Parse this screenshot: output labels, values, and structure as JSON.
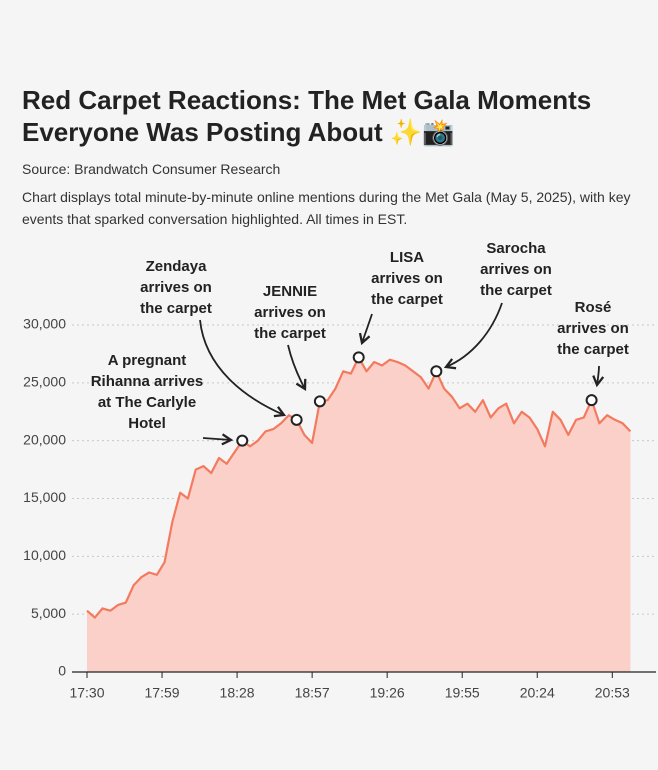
{
  "chart_data": {
    "type": "area",
    "title": "Red Carpet Reactions: The Met Gala Moments Everyone Was Posting About ✨📸",
    "source": "Source: Brandwatch Consumer Research",
    "subtitle": "Chart displays total minute-by-minute online mentions during the Met Gala (May 5, 2025), with key events that sparked conversation highlighted. All times in EST.",
    "x": [
      1050,
      1053,
      1056,
      1059,
      1062,
      1065,
      1068,
      1071,
      1074,
      1077,
      1080,
      1083,
      1086,
      1089,
      1092,
      1095,
      1098,
      1101,
      1104,
      1107,
      1110,
      1113,
      1116,
      1119,
      1122,
      1125,
      1128,
      1131,
      1134,
      1137,
      1140,
      1143,
      1146,
      1149,
      1152,
      1155,
      1158,
      1161,
      1164,
      1167,
      1170,
      1173,
      1176,
      1179,
      1182,
      1185,
      1188,
      1191,
      1194,
      1197,
      1200,
      1203,
      1206,
      1209,
      1212,
      1215,
      1218,
      1221,
      1224,
      1227,
      1230,
      1233,
      1236,
      1239,
      1242,
      1245,
      1248,
      1251,
      1254,
      1257,
      1260
    ],
    "values": [
      5300,
      4700,
      5500,
      5300,
      5800,
      6000,
      7500,
      8200,
      8600,
      8400,
      9500,
      13000,
      15500,
      15000,
      17500,
      17800,
      17200,
      18500,
      18000,
      19000,
      20000,
      19500,
      20000,
      20800,
      21000,
      21500,
      22200,
      21800,
      20500,
      19800,
      23400,
      23500,
      24500,
      26000,
      25800,
      27200,
      26000,
      26800,
      26500,
      27000,
      26800,
      26500,
      26000,
      25500,
      24500,
      26000,
      24500,
      23800,
      22800,
      23200,
      22500,
      23500,
      22000,
      22800,
      23200,
      21500,
      22500,
      22000,
      21000,
      19500,
      22500,
      21800,
      20500,
      21800,
      22000,
      23500,
      21500,
      22200,
      21800,
      21500,
      20800
    ],
    "color": "#f47a5f",
    "fill": "#fbd0c8",
    "xlim": [
      1050,
      1261
    ],
    "xticks": [
      {
        "value": 1050,
        "label": "17:30"
      },
      {
        "value": 1079,
        "label": "17:59"
      },
      {
        "value": 1108,
        "label": "18:28"
      },
      {
        "value": 1137,
        "label": "18:57"
      },
      {
        "value": 1166,
        "label": "19:26"
      },
      {
        "value": 1195,
        "label": "19:55"
      },
      {
        "value": 1224,
        "label": "20:24"
      },
      {
        "value": 1253,
        "label": "20:53"
      }
    ],
    "ylim": [
      0,
      30000
    ],
    "yticks": [
      0,
      {
        "value": 5000,
        "label": "5,000"
      },
      {
        "value": 10000,
        "label": "10,000"
      },
      {
        "value": 15000,
        "label": "15,000"
      },
      {
        "value": 20000,
        "label": "20,000"
      },
      {
        "value": 25000,
        "label": "25,000"
      },
      {
        "value": 30000,
        "label": "30,000"
      }
    ],
    "grid": true,
    "annotations": [
      {
        "lines": [
          "A pregnant",
          "Rihanna arrives",
          "at The Carlyle",
          "Hotel"
        ],
        "x": 1110,
        "y": 20000
      },
      {
        "lines": [
          "Zendaya",
          "arrives on",
          "the carpet"
        ],
        "x": 1131,
        "y": 21800
      },
      {
        "lines": [
          "JENNIE",
          "arrives on",
          "the carpet"
        ],
        "x": 1140,
        "y": 23400
      },
      {
        "lines": [
          "LISA",
          "arrives on",
          "the carpet"
        ],
        "x": 1155,
        "y": 27200
      },
      {
        "lines": [
          "Sarocha",
          "arrives on",
          "the carpet"
        ],
        "x": 1185,
        "y": 26000
      },
      {
        "lines": [
          "Rosé",
          "arrives on",
          "the carpet"
        ],
        "x": 1245,
        "y": 23500
      }
    ]
  }
}
